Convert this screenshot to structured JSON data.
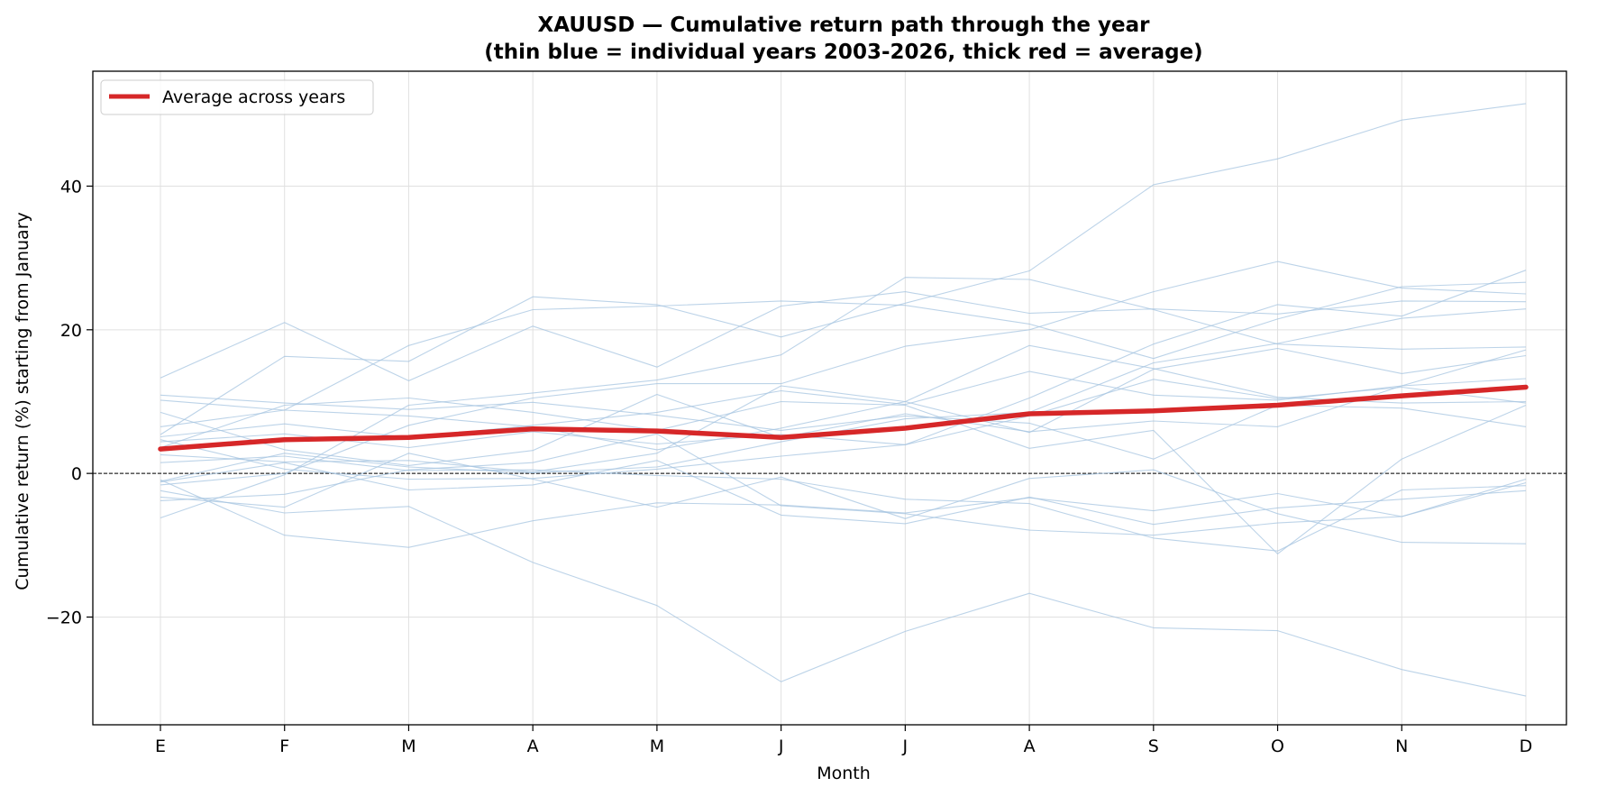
{
  "chart_data": {
    "type": "line",
    "title_line1": "XAUUSD — Cumulative return path through the year",
    "title_line2": "(thin blue = individual years 2003-2026, thick red = average)",
    "xlabel": "Month",
    "ylabel": "Cumulative return (%) starting from January",
    "categories": [
      "E",
      "F",
      "M",
      "A",
      "M",
      "J",
      "J",
      "A",
      "S",
      "O",
      "N",
      "D"
    ],
    "yticks": [
      -20,
      0,
      20,
      40
    ],
    "ylim": [
      -35,
      56
    ],
    "grid": true,
    "zero_line": true,
    "legend": {
      "position": "top-left",
      "entries": [
        "Average across years"
      ]
    },
    "colors": {
      "individual": "#a6c4e0",
      "average": "#d62728",
      "grid": "#e0e0e0"
    },
    "average": {
      "name": "Average across years",
      "values": [
        3.4,
        4.7,
        5.0,
        6.2,
        5.9,
        5.0,
        6.3,
        8.3,
        8.7,
        9.5,
        10.8,
        12.0
      ]
    },
    "series": [
      {
        "values": [
          13.3,
          21.0,
          12.9,
          20.5,
          14.8,
          23.3,
          25.3,
          22.3,
          22.9,
          22.2,
          24.0,
          23.9
        ]
      },
      {
        "values": [
          -0.9,
          -8.6,
          -10.3,
          -6.6,
          -4.1,
          -4.4,
          -5.5,
          -3.4,
          -5.2,
          -2.8,
          -6.0,
          -1.3
        ]
      },
      {
        "values": [
          8.5,
          3.3,
          1.1,
          3.2,
          11.0,
          5.0,
          8.3,
          5.8,
          7.3,
          6.5,
          12.2,
          13.2
        ]
      },
      {
        "values": [
          -1.6,
          0.0,
          6.7,
          10.5,
          12.5,
          12.5,
          17.7,
          20.0,
          25.3,
          29.5,
          25.8,
          25.0
        ]
      },
      {
        "values": [
          10.9,
          9.8,
          8.9,
          9.9,
          8.1,
          6.0,
          8.0,
          7.0,
          2.0,
          9.5,
          9.1,
          6.5
        ]
      },
      {
        "values": [
          -2.4,
          -5.5,
          -4.6,
          -12.4,
          -18.4,
          -29.0,
          -22.0,
          -16.7,
          -21.5,
          -21.9,
          -27.3,
          -31.0
        ]
      },
      {
        "values": [
          4.7,
          0.6,
          -0.8,
          -0.7,
          0.6,
          2.4,
          4.0,
          10.5,
          18.0,
          23.5,
          21.9,
          28.3
        ]
      },
      {
        "values": [
          5.4,
          16.3,
          15.6,
          24.6,
          23.5,
          19.0,
          23.7,
          28.2,
          40.2,
          43.8,
          49.2,
          51.5
        ]
      },
      {
        "values": [
          3.6,
          9.5,
          10.5,
          8.5,
          6.0,
          10.0,
          9.5,
          3.5,
          6.0,
          -11.2,
          2.0,
          9.5
        ]
      },
      {
        "values": [
          6.5,
          8.8,
          17.8,
          22.8,
          23.3,
          24.0,
          23.4,
          20.8,
          16.0,
          21.5,
          26.0,
          26.6
        ]
      },
      {
        "values": [
          -6.2,
          -0.2,
          9.5,
          11.2,
          13.0,
          16.5,
          27.3,
          27.0,
          22.8,
          18.0,
          17.3,
          17.6
        ]
      },
      {
        "values": [
          -3.8,
          -2.9,
          0.5,
          1.5,
          5.5,
          -4.5,
          -5.6,
          -7.9,
          -8.6,
          -6.9,
          -6.0,
          -0.8
        ]
      },
      {
        "values": [
          -1.1,
          2.8,
          0.9,
          0.1,
          0.9,
          4.4,
          7.6,
          8.5,
          15.4,
          18.1,
          21.6,
          22.9
        ]
      },
      {
        "values": [
          1.5,
          2.4,
          0.4,
          0.5,
          -0.3,
          -0.8,
          -3.6,
          -4.2,
          -9.0,
          -10.8,
          -2.3,
          -1.7
        ]
      },
      {
        "values": [
          4.4,
          5.5,
          3.6,
          5.8,
          4.1,
          5.4,
          4.0,
          8.0,
          13.1,
          10.4,
          12.0,
          9.8
        ]
      },
      {
        "values": [
          5.1,
          6.9,
          5.0,
          6.7,
          8.5,
          11.5,
          9.6,
          14.2,
          10.9,
          10.2,
          12.2,
          17.2
        ]
      },
      {
        "values": [
          10.2,
          8.8,
          8.0,
          6.5,
          3.3,
          6.3,
          10.0,
          5.7,
          14.5,
          17.4,
          13.9,
          16.4
        ]
      },
      {
        "values": [
          -3.3,
          -4.7,
          2.8,
          -0.8,
          -4.7,
          -0.5,
          -6.3,
          -0.7,
          0.5,
          -5.6,
          -9.6,
          -9.8
        ]
      },
      {
        "values": [
          -1.2,
          1.5,
          -2.3,
          -1.6,
          1.8,
          -5.8,
          -7.0,
          -3.3,
          -7.1,
          -4.8,
          -3.6,
          -2.4
        ]
      },
      {
        "values": [
          2.6,
          1.6,
          1.8,
          0.2,
          2.8,
          12.2,
          10.0,
          17.8,
          14.6,
          10.6,
          9.8,
          10.0
        ]
      }
    ]
  }
}
